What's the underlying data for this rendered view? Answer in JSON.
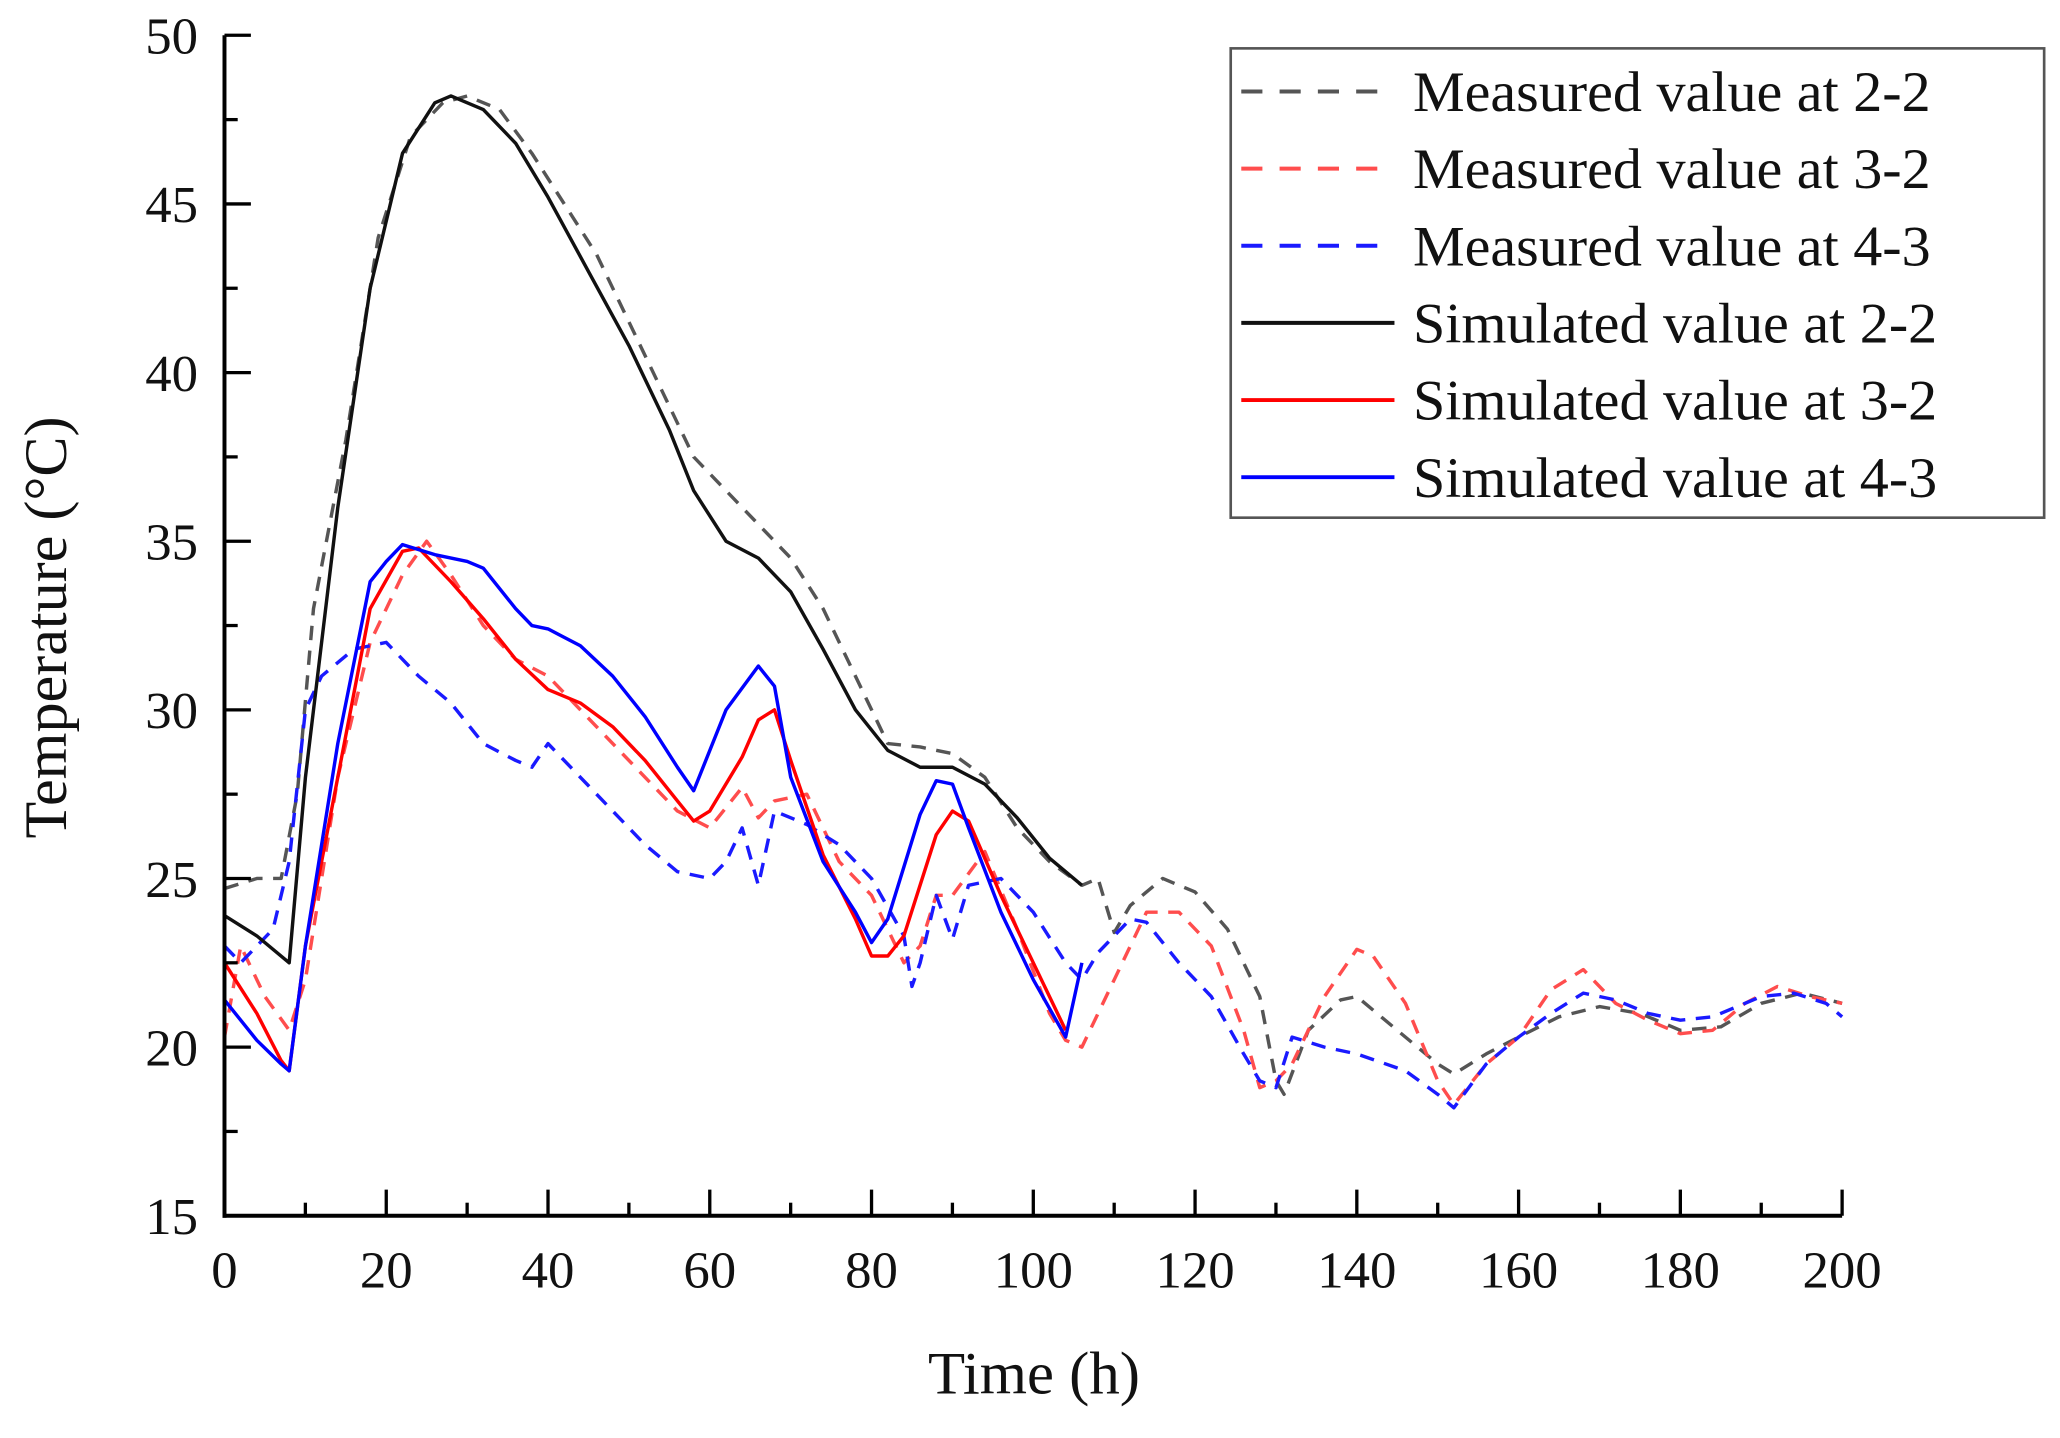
{
  "chart_data": {
    "type": "line",
    "title": "",
    "xlabel": "Time (h)",
    "ylabel": "Temperature (°C)",
    "xlim": [
      0,
      200
    ],
    "ylim": [
      15,
      50
    ],
    "xticks": [
      0,
      20,
      40,
      60,
      80,
      100,
      120,
      140,
      160,
      180,
      200
    ],
    "yticks": [
      15,
      20,
      25,
      30,
      35,
      40,
      45,
      50
    ],
    "grid": false,
    "legend_position": "top-right",
    "series": [
      {
        "name": "Measured value at 2-2",
        "color": "#555555",
        "style": "dashed",
        "x": [
          0,
          4,
          7,
          9,
          11,
          15,
          19,
          23,
          27,
          30,
          34,
          38,
          42,
          46,
          50,
          54,
          58,
          62,
          66,
          70,
          74,
          78,
          82,
          86,
          90,
          94,
          98,
          102,
          106,
          108,
          110,
          112,
          116,
          120,
          124,
          128,
          130,
          131,
          134,
          138,
          140,
          145,
          150,
          152,
          156,
          160,
          165,
          170,
          175,
          180,
          185,
          190,
          195,
          200
        ],
        "y": [
          24.7,
          25,
          25,
          27.5,
          33,
          38,
          44,
          47,
          48,
          48.2,
          47.8,
          46.5,
          45,
          43.5,
          41.5,
          39.5,
          37.5,
          36.5,
          35.5,
          34.5,
          33,
          31,
          29,
          28.9,
          28.7,
          28,
          26.5,
          25.5,
          24.8,
          25,
          23.4,
          24.2,
          25,
          24.6,
          23.5,
          21.5,
          19,
          18.6,
          20.5,
          21.4,
          21.5,
          20.5,
          19.5,
          19.2,
          19.8,
          20.3,
          20.9,
          21.2,
          21,
          20.5,
          20.6,
          21.3,
          21.6,
          21.3
        ]
      },
      {
        "name": "Measured value at 3-2",
        "color": "#ff4d4d",
        "style": "dashed",
        "x": [
          0,
          2,
          5,
          8,
          10,
          14,
          18,
          22,
          25,
          28,
          32,
          36,
          40,
          44,
          48,
          52,
          56,
          60,
          64,
          66,
          68,
          72,
          76,
          80,
          84,
          86,
          88,
          90,
          94,
          98,
          102,
          104,
          106,
          110,
          114,
          118,
          122,
          126,
          128,
          130,
          132,
          136,
          140,
          142,
          146,
          150,
          152,
          156,
          160,
          164,
          168,
          172,
          176,
          180,
          184,
          188,
          192,
          196,
          200
        ],
        "y": [
          20.3,
          23,
          21.5,
          20.5,
          22,
          28,
          32,
          34,
          35,
          34,
          32.5,
          31.5,
          31,
          30,
          29,
          28,
          27,
          26.5,
          27.7,
          26.8,
          27.3,
          27.5,
          25.5,
          24.5,
          22.5,
          23,
          24.5,
          24.5,
          25.8,
          23.5,
          21,
          20.2,
          20,
          22,
          24,
          24,
          23,
          20.5,
          18.8,
          19,
          19.5,
          21.5,
          22.9,
          22.7,
          21.3,
          19,
          18.3,
          19.5,
          20.3,
          21.7,
          22.3,
          21.3,
          20.8,
          20.4,
          20.5,
          21.3,
          21.8,
          21.5,
          21.3
        ]
      },
      {
        "name": "Measured value at 4-3",
        "color": "#1a1aff",
        "style": "dashed",
        "x": [
          0,
          2,
          6,
          8,
          10,
          12,
          16,
          20,
          24,
          28,
          32,
          36,
          38,
          40,
          44,
          48,
          52,
          56,
          60,
          62,
          64,
          66,
          68,
          72,
          76,
          80,
          84,
          85,
          86,
          88,
          90,
          92,
          96,
          100,
          104,
          106,
          108,
          112,
          114,
          118,
          122,
          126,
          128,
          130,
          132,
          136,
          140,
          146,
          150,
          152,
          156,
          160,
          164,
          168,
          172,
          176,
          180,
          184,
          190,
          194,
          198,
          200
        ],
        "y": [
          23,
          22.5,
          23.5,
          25.5,
          30,
          31,
          31.8,
          32,
          31,
          30.2,
          29,
          28.5,
          28.3,
          29,
          28,
          27,
          26,
          25.2,
          25,
          25.5,
          26.5,
          24.8,
          27,
          26.6,
          26,
          25,
          23.3,
          21.8,
          22.5,
          24.5,
          23.2,
          24.8,
          25,
          24,
          22.5,
          22,
          22.8,
          23.8,
          23.7,
          22.5,
          21.5,
          19.8,
          19,
          18.8,
          20.3,
          20,
          19.8,
          19.3,
          18.6,
          18.2,
          19.5,
          20.3,
          21,
          21.6,
          21.4,
          21,
          20.8,
          20.9,
          21.5,
          21.6,
          21.3,
          20.9
        ]
      },
      {
        "name": "Simulated value at 2-2",
        "color": "#111111",
        "style": "solid",
        "x": [
          0,
          4,
          8,
          10,
          14,
          18,
          22,
          26,
          28,
          32,
          36,
          40,
          45,
          50,
          55,
          58,
          62,
          66,
          70,
          74,
          78,
          82,
          86,
          90,
          94,
          98,
          102,
          106
        ],
        "y": [
          23.9,
          23.3,
          22.5,
          28,
          36,
          42.5,
          46.5,
          48,
          48.2,
          47.8,
          46.8,
          45.2,
          43,
          40.8,
          38.3,
          36.5,
          35,
          34.5,
          33.5,
          31.8,
          30,
          28.8,
          28.3,
          28.3,
          27.8,
          26.8,
          25.6,
          24.8
        ]
      },
      {
        "name": "Simulated value at 3-2",
        "color": "#ff0000",
        "style": "solid",
        "x": [
          0,
          4,
          7,
          8,
          10,
          14,
          18,
          22,
          24,
          28,
          32,
          36,
          40,
          44,
          48,
          52,
          56,
          58,
          60,
          64,
          66,
          68,
          70,
          74,
          78,
          80,
          82,
          84,
          88,
          90,
          92,
          96,
          100,
          104
        ],
        "y": [
          22.5,
          21,
          19.6,
          19.3,
          23,
          28,
          33,
          34.7,
          34.8,
          33.8,
          32.7,
          31.5,
          30.6,
          30.2,
          29.5,
          28.5,
          27.3,
          26.7,
          27,
          28.6,
          29.7,
          30,
          28.5,
          25.7,
          23.8,
          22.7,
          22.7,
          23.3,
          26.3,
          27,
          26.7,
          24.5,
          22.5,
          20.5
        ]
      },
      {
        "name": "Simulated value at 4-3",
        "color": "#0000ff",
        "style": "solid",
        "x": [
          0,
          4,
          7,
          8,
          10,
          14,
          18,
          20,
          22,
          26,
          30,
          32,
          36,
          38,
          40,
          44,
          48,
          52,
          56,
          58,
          62,
          66,
          68,
          70,
          74,
          78,
          80,
          82,
          86,
          88,
          90,
          92,
          96,
          100,
          104,
          106
        ],
        "y": [
          21.4,
          20.2,
          19.5,
          19.3,
          23,
          29,
          33.8,
          34.4,
          34.9,
          34.6,
          34.4,
          34.2,
          33,
          32.5,
          32.4,
          31.9,
          31,
          29.8,
          28.3,
          27.6,
          30,
          31.3,
          30.7,
          28,
          25.5,
          24,
          23.1,
          23.8,
          26.9,
          27.9,
          27.8,
          26.5,
          24,
          22,
          20.3,
          22.5
        ]
      }
    ]
  }
}
